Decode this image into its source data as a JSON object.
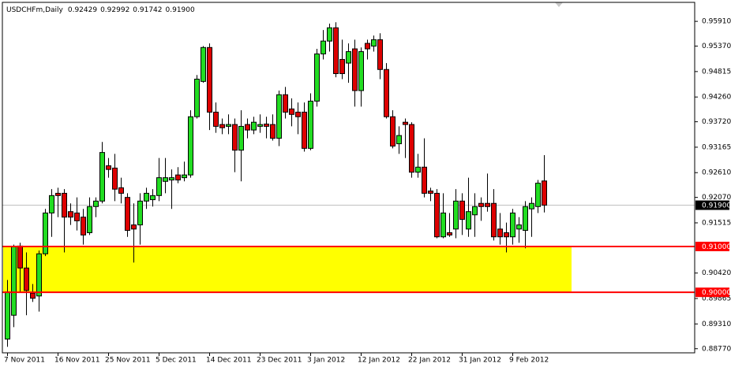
{
  "chart_data": {
    "type": "candlestick",
    "title": "USDCHFm,Daily",
    "header_prices": [
      "0.92429",
      "0.92992",
      "0.91742",
      "0.91900"
    ],
    "open": [
      0.8898,
      0.895,
      0.9101,
      0.9053,
      0.8998,
      0.8992,
      0.9084,
      0.9173,
      0.9216,
      0.9216,
      0.9176,
      0.9173,
      0.9164,
      0.913,
      0.9187,
      0.9199,
      0.9276,
      0.9271,
      0.9228,
      0.9207,
      0.9147,
      0.9147,
      0.9199,
      0.9202,
      0.9211,
      0.9242,
      0.9245,
      0.9256,
      0.925,
      0.9256,
      0.9383,
      0.946,
      0.9534,
      0.9393,
      0.9366,
      0.9362,
      0.9366,
      0.931,
      0.9366,
      0.9354,
      0.9362,
      0.9367,
      0.9366,
      0.9336,
      0.9431,
      0.94,
      0.9393,
      0.9393,
      0.9314,
      0.9417,
      0.952,
      0.9548,
      0.9577,
      0.9508,
      0.95,
      0.9531,
      0.944,
      0.9543,
      0.9537,
      0.9551,
      0.9486,
      0.9383,
      0.9324,
      0.9371,
      0.9366,
      0.9262,
      0.9273,
      0.9221,
      0.9216,
      0.9121,
      0.913,
      0.9138,
      0.9199,
      0.9138,
      0.9169,
      0.9194,
      0.9194,
      0.9194,
      0.9138,
      0.913,
      0.9121,
      0.9138,
      0.9135,
      0.9182,
      0.9187,
      0.92429
    ],
    "high": [
      0.9027,
      0.9104,
      0.9108,
      0.9087,
      0.9018,
      0.9091,
      0.9182,
      0.9225,
      0.9228,
      0.9225,
      0.9194,
      0.9207,
      0.9182,
      0.9207,
      0.9207,
      0.9328,
      0.9293,
      0.9302,
      0.925,
      0.9216,
      0.9194,
      0.9216,
      0.9228,
      0.9225,
      0.9293,
      0.9293,
      0.9268,
      0.9273,
      0.9285,
      0.9397,
      0.9474,
      0.9537,
      0.9543,
      0.9414,
      0.9379,
      0.9388,
      0.9379,
      0.9397,
      0.9379,
      0.9383,
      0.9388,
      0.9383,
      0.9388,
      0.944,
      0.9448,
      0.9423,
      0.9414,
      0.9414,
      0.9434,
      0.9531,
      0.9572,
      0.9586,
      0.9589,
      0.9551,
      0.9543,
      0.9551,
      0.9534,
      0.9551,
      0.956,
      0.9565,
      0.95,
      0.9397,
      0.9362,
      0.9379,
      0.9371,
      0.9302,
      0.9336,
      0.9228,
      0.9225,
      0.9216,
      0.9173,
      0.9225,
      0.9216,
      0.925,
      0.9216,
      0.9207,
      0.9259,
      0.9225,
      0.9173,
      0.9152,
      0.9182,
      0.9164,
      0.9199,
      0.9207,
      0.9245,
      0.92992
    ],
    "low": [
      0.8881,
      0.8924,
      0.9001,
      0.895,
      0.8979,
      0.8958,
      0.9079,
      0.9121,
      0.9164,
      0.9087,
      0.9147,
      0.9135,
      0.9104,
      0.9125,
      0.9164,
      0.9194,
      0.925,
      0.9199,
      0.9194,
      0.9121,
      0.9065,
      0.9104,
      0.9182,
      0.9187,
      0.9199,
      0.9216,
      0.9182,
      0.9238,
      0.9242,
      0.925,
      0.9379,
      0.9457,
      0.9354,
      0.9348,
      0.9345,
      0.9345,
      0.9262,
      0.9242,
      0.9336,
      0.9345,
      0.9348,
      0.9336,
      0.9331,
      0.9319,
      0.9379,
      0.9362,
      0.9345,
      0.9307,
      0.931,
      0.9405,
      0.9508,
      0.9525,
      0.9469,
      0.9465,
      0.9457,
      0.9405,
      0.9405,
      0.9508,
      0.9525,
      0.9465,
      0.9379,
      0.9314,
      0.9302,
      0.9293,
      0.925,
      0.925,
      0.9207,
      0.9199,
      0.9118,
      0.9118,
      0.9121,
      0.9118,
      0.9125,
      0.9121,
      0.9121,
      0.9156,
      0.9176,
      0.9113,
      0.9104,
      0.9087,
      0.9104,
      0.9108,
      0.9096,
      0.9121,
      0.9173,
      0.91742
    ],
    "close": [
      0.9001,
      0.9099,
      0.9053,
      0.9004,
      0.8987,
      0.9084,
      0.9173,
      0.9211,
      0.9211,
      0.9164,
      0.9164,
      0.9156,
      0.9125,
      0.9187,
      0.9199,
      0.9305,
      0.9268,
      0.9225,
      0.9216,
      0.9135,
      0.9138,
      0.9199,
      0.9216,
      0.9211,
      0.925,
      0.925,
      0.925,
      0.9245,
      0.9256,
      0.9383,
      0.9465,
      0.9534,
      0.9393,
      0.9362,
      0.9359,
      0.9366,
      0.931,
      0.9362,
      0.9354,
      0.9371,
      0.9366,
      0.9362,
      0.9336,
      0.9431,
      0.9393,
      0.9388,
      0.9383,
      0.9314,
      0.9417,
      0.952,
      0.9548,
      0.9577,
      0.9477,
      0.9477,
      0.9525,
      0.944,
      0.9525,
      0.9531,
      0.9551,
      0.9486,
      0.9383,
      0.9319,
      0.9342,
      0.9366,
      0.9262,
      0.9273,
      0.9216,
      0.9216,
      0.9121,
      0.9173,
      0.9125,
      0.9199,
      0.9159,
      0.9176,
      0.9187,
      0.9187,
      0.9187,
      0.9121,
      0.9121,
      0.9121,
      0.9173,
      0.9147,
      0.9187,
      0.9194,
      0.9238,
      0.919
    ],
    "up_color": "#22dd22",
    "down_color": "#dd0000",
    "xticks": [
      {
        "value": 0,
        "label": "7 Nov 2011"
      },
      {
        "value": 8,
        "label": "16 Nov 2011"
      },
      {
        "value": 16,
        "label": "25 Nov 2011"
      },
      {
        "value": 24,
        "label": "5 Dec 2011"
      },
      {
        "value": 32,
        "label": "14 Dec 2011"
      },
      {
        "value": 40,
        "label": "23 Dec 2011"
      },
      {
        "value": 48,
        "label": "3 Jan 2012"
      },
      {
        "value": 56,
        "label": "12 Jan 2012"
      },
      {
        "value": 64,
        "label": "22 Jan 2012"
      },
      {
        "value": 72,
        "label": "31 Jan 2012"
      },
      {
        "value": 80,
        "label": "9 Feb 2012"
      }
    ],
    "ylim": [
      0.8868,
      0.9629
    ],
    "yticks": [
      {
        "value": 0.9591,
        "label": "0.95910"
      },
      {
        "value": 0.9537,
        "label": "0.95370"
      },
      {
        "value": 0.94815,
        "label": "0.94815"
      },
      {
        "value": 0.9426,
        "label": "0.94260"
      },
      {
        "value": 0.9372,
        "label": "0.93720"
      },
      {
        "value": 0.93165,
        "label": "0.93165"
      },
      {
        "value": 0.9261,
        "label": "0.92610"
      },
      {
        "value": 0.9207,
        "label": "0.92070"
      },
      {
        "value": 0.91515,
        "label": "0.91515"
      },
      {
        "value": 0.9042,
        "label": "0.90420"
      },
      {
        "value": 0.89865,
        "label": "0.89865"
      },
      {
        "value": 0.8931,
        "label": "0.89310"
      },
      {
        "value": 0.8877,
        "label": "0.88770"
      }
    ],
    "zone": {
      "from": 0.9,
      "to": 0.91,
      "color": "#ffff00"
    },
    "current_price": {
      "value": 0.919,
      "label": "0.91900",
      "color": "#c0c0c0"
    },
    "hlines": [
      {
        "value": 0.91,
        "label": "0.91000",
        "color": "#ff0000"
      },
      {
        "value": 0.9,
        "label": "0.90000",
        "color": "#ff0000"
      }
    ]
  }
}
